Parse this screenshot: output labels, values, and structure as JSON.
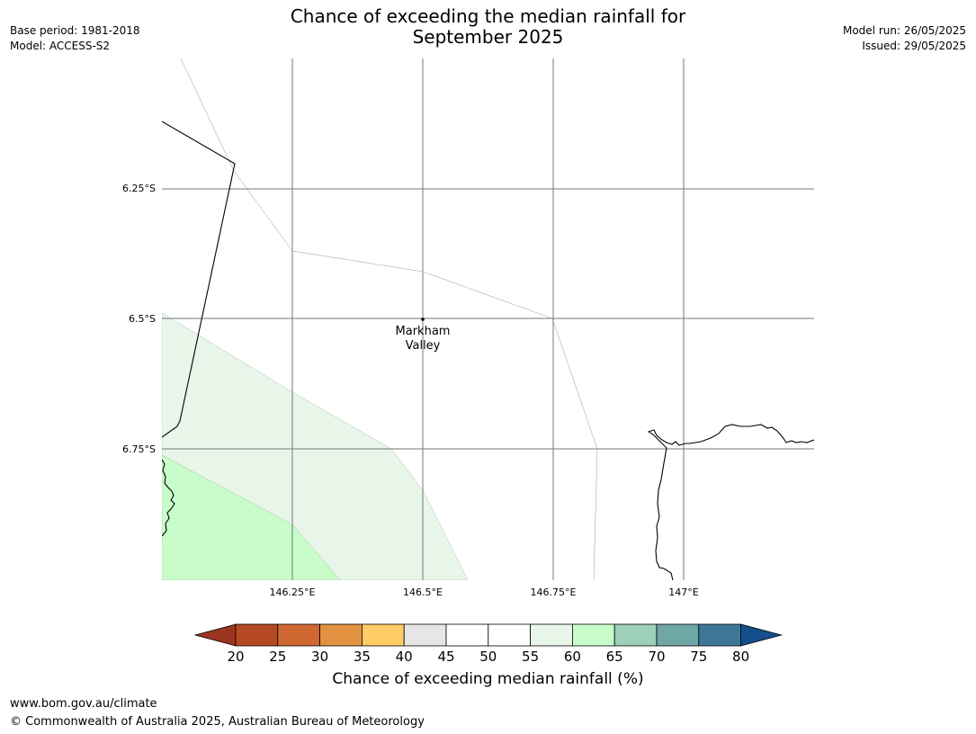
{
  "header": {
    "title_line1": "Chance of exceeding the median rainfall for",
    "title_line2": "September 2025",
    "base_period": "Base period: 1981-2018",
    "model": "Model: ACCESS-S2",
    "model_run": "Model run: 26/05/2025",
    "issued": "Issued: 29/05/2025"
  },
  "map": {
    "lat_labels": [
      "6.25°S",
      "6.5°S",
      "6.75°S"
    ],
    "lon_labels": [
      "146.25°E",
      "146.5°E",
      "146.75°E",
      "147°E"
    ],
    "place_line1": "Markham",
    "place_line2": "Valley",
    "shading_colors": {
      "55-60": "#e8f5e9",
      "60-65": "#c8fcc8"
    }
  },
  "colorbar": {
    "label": "Chance of exceeding median rainfall (%)",
    "ticks": [
      "20",
      "25",
      "30",
      "35",
      "40",
      "45",
      "50",
      "55",
      "60",
      "65",
      "70",
      "75",
      "80"
    ],
    "colors": [
      "#9c3520",
      "#b54a22",
      "#cf6730",
      "#e39242",
      "#ffcd66",
      "#e8e6e4",
      "#ffffff",
      "#ffffff",
      "#e8f5e9",
      "#c8fcc8",
      "#9dd0b8",
      "#6fa6a6",
      "#3e7898",
      "#144f8c"
    ]
  },
  "footer": {
    "url": "www.bom.gov.au/climate",
    "copyright": "© Commonwealth of Australia 2025, Australian Bureau of Meteorology"
  }
}
